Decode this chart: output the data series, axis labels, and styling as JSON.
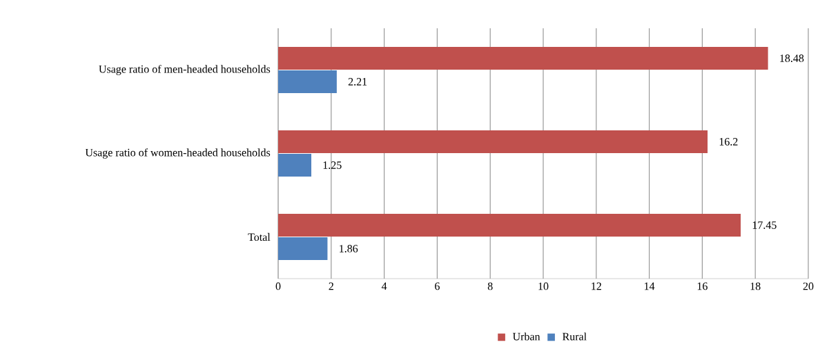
{
  "chart_data": {
    "type": "bar",
    "orientation": "horizontal",
    "categories": [
      "Usage ratio of men-headed households",
      "Usage ratio of women-headed households",
      "Total"
    ],
    "series": [
      {
        "name": "Urban",
        "color": "#c0504d",
        "values": [
          18.48,
          16.2,
          17.45
        ]
      },
      {
        "name": "Rural",
        "color": "#4f81bd",
        "values": [
          2.21,
          1.25,
          1.86
        ]
      }
    ],
    "xlim": [
      0,
      20
    ],
    "xticks": [
      0,
      2,
      4,
      6,
      8,
      10,
      12,
      14,
      16,
      18,
      20
    ],
    "grid": "x",
    "legend": "bottom",
    "data_labels": true
  }
}
